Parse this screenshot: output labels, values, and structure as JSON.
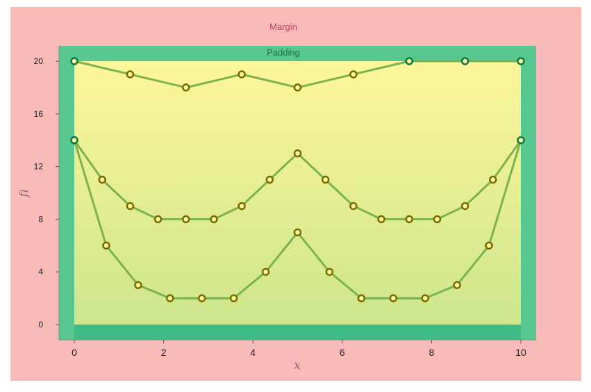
{
  "labels": {
    "margin": "Margin",
    "padding": "Padding"
  },
  "colors": {
    "margin": "#f8b9b9",
    "margin_text": "#b5485e",
    "padding": "#57c78f",
    "padding_text": "#1f6e4a",
    "bottom_band": "#3fbb85",
    "plot_top": "#fdf69a",
    "plot_bottom": "#cde58c",
    "line": "#7bb24e",
    "marker_fill": "#fdf69a",
    "marker_stroke": "#7a6a00",
    "marker_stroke_edge": "#0e7a48"
  },
  "chart_data": {
    "type": "line",
    "title": "",
    "xlabel": "x",
    "ylabel": "fi",
    "xlim": [
      0,
      10
    ],
    "ylim": [
      0,
      20
    ],
    "xticks": [
      0,
      2,
      4,
      6,
      8,
      10
    ],
    "yticks": [
      0,
      4,
      8,
      12,
      16,
      20
    ],
    "grid": false,
    "series": [
      {
        "x": [
          0,
          1.25,
          2.5,
          3.75,
          5,
          6.25,
          7.5,
          8.75,
          10
        ],
        "y": [
          20,
          19,
          18,
          19,
          18,
          19,
          20,
          20,
          20
        ]
      },
      {
        "x": [
          0,
          0.625,
          1.25,
          1.875,
          2.5,
          3.125,
          3.75,
          4.375,
          5,
          5.625,
          6.25,
          6.875,
          7.5,
          8.125,
          8.75,
          9.375,
          10
        ],
        "y": [
          14,
          11,
          9,
          8,
          8,
          8,
          9,
          11,
          13,
          11,
          9,
          8,
          8,
          8,
          9,
          11,
          14
        ]
      },
      {
        "x": [
          0,
          0.714,
          1.429,
          2.143,
          2.857,
          3.571,
          4.286,
          5,
          5.714,
          6.429,
          7.143,
          7.857,
          8.571,
          9.286,
          10
        ],
        "y": [
          14,
          6,
          3,
          2,
          2,
          2,
          4,
          7,
          4,
          2,
          2,
          2,
          3,
          6,
          14
        ]
      }
    ]
  }
}
